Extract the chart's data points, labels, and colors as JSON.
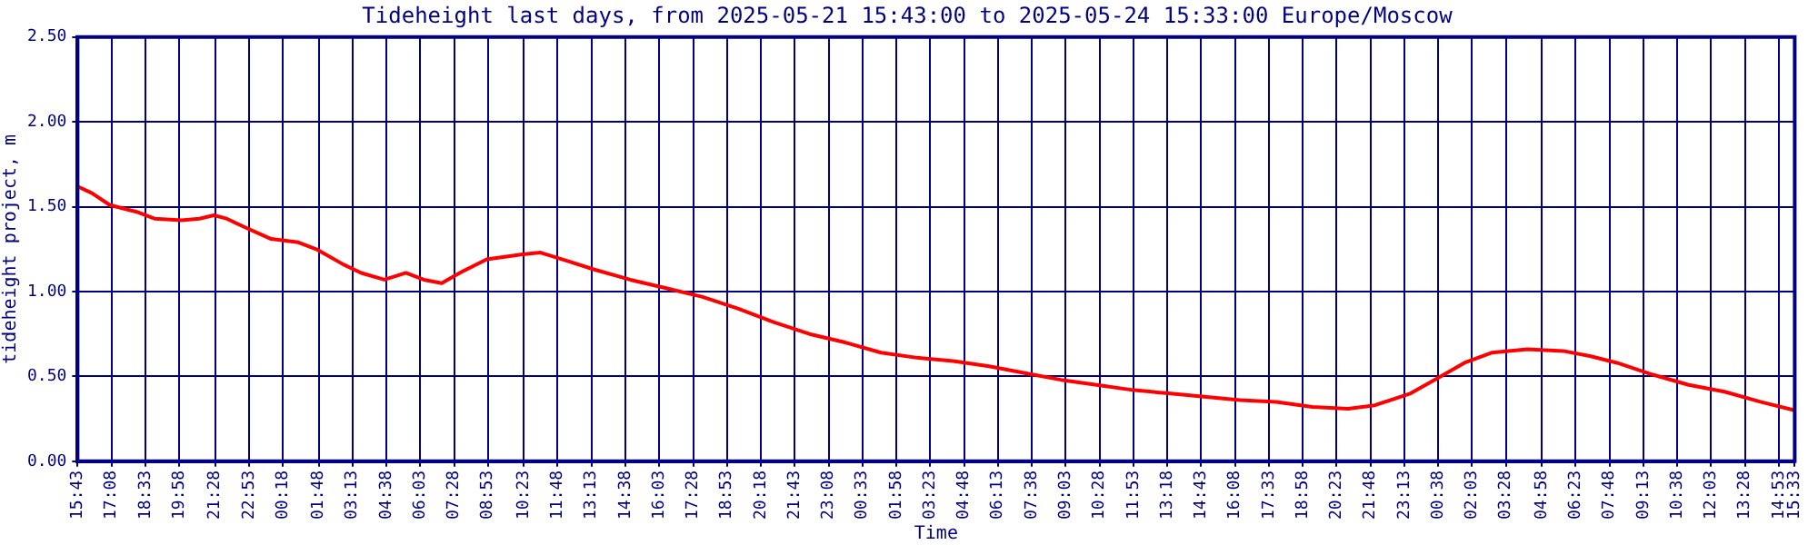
{
  "chart_data": {
    "type": "line",
    "title": "Tideheight last days, from 2025-05-21 15:43:00 to 2025-05-24 15:33:00 Europe/Moscow",
    "xlabel": "Time",
    "ylabel": "tideheight project, m",
    "x": [
      "2025-05-21T15:43",
      "2025-05-21T16:19",
      "2025-05-21T17:04",
      "2025-05-21T18:11",
      "2025-05-21T18:56",
      "2025-05-21T20:04",
      "2025-05-21T20:49",
      "2025-05-21T21:25",
      "2025-05-21T21:57",
      "2025-05-21T22:42",
      "2025-05-21T23:49",
      "2025-05-22T00:57",
      "2025-05-22T01:42",
      "2025-05-22T02:50",
      "2025-05-22T03:35",
      "2025-05-22T04:33",
      "2025-05-22T05:27",
      "2025-05-22T06:12",
      "2025-05-22T06:57",
      "2025-05-22T07:42",
      "2025-05-22T08:50",
      "2025-05-22T10:20",
      "2025-05-22T11:05",
      "2025-05-22T12:13",
      "2025-05-22T13:20",
      "2025-05-22T14:50",
      "2025-05-22T16:20",
      "2025-05-22T17:50",
      "2025-05-22T19:20",
      "2025-05-22T20:50",
      "2025-05-22T22:20",
      "2025-05-22T23:50",
      "2025-05-23T01:20",
      "2025-05-23T02:50",
      "2025-05-23T04:21",
      "2025-05-23T05:51",
      "2025-05-23T07:21",
      "2025-05-23T08:51",
      "2025-05-23T10:21",
      "2025-05-23T11:51",
      "2025-05-23T13:21",
      "2025-05-23T14:51",
      "2025-05-23T16:21",
      "2025-05-23T17:52",
      "2025-05-23T19:22",
      "2025-05-23T20:52",
      "2025-05-23T21:59",
      "2025-05-23T23:29",
      "2025-05-24T00:37",
      "2025-05-24T01:44",
      "2025-05-24T02:52",
      "2025-05-24T04:22",
      "2025-05-24T05:52",
      "2025-05-24T06:59",
      "2025-05-24T08:07",
      "2025-05-24T09:37",
      "2025-05-24T11:07",
      "2025-05-24T12:37",
      "2025-05-24T14:07",
      "2025-05-24T15:33"
    ],
    "values": [
      1.62,
      1.58,
      1.51,
      1.47,
      1.43,
      1.42,
      1.43,
      1.45,
      1.43,
      1.38,
      1.31,
      1.29,
      1.25,
      1.16,
      1.11,
      1.07,
      1.11,
      1.07,
      1.05,
      1.11,
      1.19,
      1.22,
      1.23,
      1.18,
      1.13,
      1.07,
      1.02,
      0.97,
      0.9,
      0.82,
      0.75,
      0.7,
      0.64,
      0.61,
      0.59,
      0.56,
      0.52,
      0.48,
      0.45,
      0.42,
      0.4,
      0.38,
      0.36,
      0.35,
      0.32,
      0.31,
      0.33,
      0.4,
      0.49,
      0.58,
      0.64,
      0.66,
      0.65,
      0.62,
      0.58,
      0.51,
      0.45,
      0.41,
      0.35,
      0.3
    ],
    "color": "#ff0000",
    "marker": "none",
    "line_style": "solid",
    "grid": true,
    "xlim": [
      "2025-05-21T15:43",
      "2025-05-24T15:33"
    ],
    "xticks": [
      {
        "value": "2025-05-21T15:43",
        "label": "15:43"
      },
      {
        "value": "2025-05-21T17:08",
        "label": "17:08"
      },
      {
        "value": "2025-05-21T18:33",
        "label": "18:33"
      },
      {
        "value": "2025-05-21T19:58",
        "label": "19:58"
      },
      {
        "value": "2025-05-21T21:28",
        "label": "21:28"
      },
      {
        "value": "2025-05-21T22:53",
        "label": "22:53"
      },
      {
        "value": "2025-05-22T00:18",
        "label": "00:18"
      },
      {
        "value": "2025-05-22T01:48",
        "label": "01:48"
      },
      {
        "value": "2025-05-22T03:13",
        "label": "03:13"
      },
      {
        "value": "2025-05-22T04:38",
        "label": "04:38"
      },
      {
        "value": "2025-05-22T06:03",
        "label": "06:03"
      },
      {
        "value": "2025-05-22T07:28",
        "label": "07:28"
      },
      {
        "value": "2025-05-22T08:53",
        "label": "08:53"
      },
      {
        "value": "2025-05-22T10:23",
        "label": "10:23"
      },
      {
        "value": "2025-05-22T11:48",
        "label": "11:48"
      },
      {
        "value": "2025-05-22T13:13",
        "label": "13:13"
      },
      {
        "value": "2025-05-22T14:38",
        "label": "14:38"
      },
      {
        "value": "2025-05-22T16:03",
        "label": "16:03"
      },
      {
        "value": "2025-05-22T17:28",
        "label": "17:28"
      },
      {
        "value": "2025-05-22T18:53",
        "label": "18:53"
      },
      {
        "value": "2025-05-22T20:18",
        "label": "20:18"
      },
      {
        "value": "2025-05-22T21:43",
        "label": "21:43"
      },
      {
        "value": "2025-05-22T23:08",
        "label": "23:08"
      },
      {
        "value": "2025-05-23T00:33",
        "label": "00:33"
      },
      {
        "value": "2025-05-23T01:58",
        "label": "01:58"
      },
      {
        "value": "2025-05-23T03:23",
        "label": "03:23"
      },
      {
        "value": "2025-05-23T04:48",
        "label": "04:48"
      },
      {
        "value": "2025-05-23T06:13",
        "label": "06:13"
      },
      {
        "value": "2025-05-23T07:38",
        "label": "07:38"
      },
      {
        "value": "2025-05-23T09:03",
        "label": "09:03"
      },
      {
        "value": "2025-05-23T10:28",
        "label": "10:28"
      },
      {
        "value": "2025-05-23T11:53",
        "label": "11:53"
      },
      {
        "value": "2025-05-23T13:18",
        "label": "13:18"
      },
      {
        "value": "2025-05-23T14:43",
        "label": "14:43"
      },
      {
        "value": "2025-05-23T16:08",
        "label": "16:08"
      },
      {
        "value": "2025-05-23T17:33",
        "label": "17:33"
      },
      {
        "value": "2025-05-23T18:58",
        "label": "18:58"
      },
      {
        "value": "2025-05-23T20:23",
        "label": "20:23"
      },
      {
        "value": "2025-05-23T21:48",
        "label": "21:48"
      },
      {
        "value": "2025-05-23T23:13",
        "label": "23:13"
      },
      {
        "value": "2025-05-24T00:38",
        "label": "00:38"
      },
      {
        "value": "2025-05-24T02:03",
        "label": "02:03"
      },
      {
        "value": "2025-05-24T03:28",
        "label": "03:28"
      },
      {
        "value": "2025-05-24T04:58",
        "label": "04:58"
      },
      {
        "value": "2025-05-24T06:23",
        "label": "06:23"
      },
      {
        "value": "2025-05-24T07:48",
        "label": "07:48"
      },
      {
        "value": "2025-05-24T09:13",
        "label": "09:13"
      },
      {
        "value": "2025-05-24T10:38",
        "label": "10:38"
      },
      {
        "value": "2025-05-24T12:03",
        "label": "12:03"
      },
      {
        "value": "2025-05-24T13:28",
        "label": "13:28"
      },
      {
        "value": "2025-05-24T14:53",
        "label": "14:53"
      },
      {
        "value": "2025-05-24T15:33",
        "label": "15:33"
      }
    ],
    "ylim": [
      0,
      2.5
    ],
    "yticks": [
      {
        "value": 0,
        "label": "0.00"
      },
      {
        "value": 0.5,
        "label": "0.50"
      },
      {
        "value": 1,
        "label": "1.00"
      },
      {
        "value": 1.5,
        "label": "1.50"
      },
      {
        "value": 2,
        "label": "2.00"
      },
      {
        "value": 2.5,
        "label": "2.50"
      }
    ]
  }
}
